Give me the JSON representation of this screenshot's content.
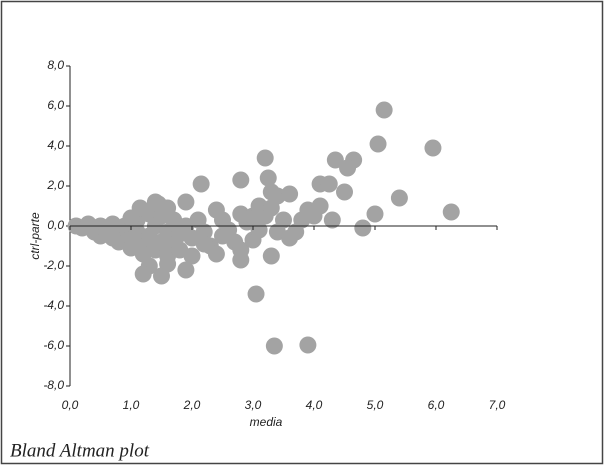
{
  "chart_data": {
    "type": "scatter",
    "caption": "Bland Altman plot",
    "x_label": "media",
    "y_label": "ctrl-parte",
    "color": "#a3a3a3",
    "xlim": [
      0,
      7
    ],
    "ylim": [
      -8,
      8
    ],
    "xticks": [
      {
        "value": 0,
        "label": "0,0"
      },
      {
        "value": 1,
        "label": "1,0"
      },
      {
        "value": 2,
        "label": "2,0"
      },
      {
        "value": 3,
        "label": "3,0"
      },
      {
        "value": 4,
        "label": "4,0"
      },
      {
        "value": 5,
        "label": "5,0"
      },
      {
        "value": 6,
        "label": "6,0"
      },
      {
        "value": 7,
        "label": "7,0"
      }
    ],
    "yticks": [
      {
        "value": -8,
        "label": "-8,0"
      },
      {
        "value": -6,
        "label": "-6,0"
      },
      {
        "value": -4,
        "label": "-4,0"
      },
      {
        "value": -2,
        "label": "-2,0"
      },
      {
        "value": 0,
        "label": "0,0"
      },
      {
        "value": 2,
        "label": "2,0"
      },
      {
        "value": 4,
        "label": "4,0"
      },
      {
        "value": 6,
        "label": "6,0"
      },
      {
        "value": 8,
        "label": "8,0"
      }
    ],
    "x": [
      0.1,
      0.2,
      0.3,
      0.4,
      0.5,
      0.5,
      0.6,
      0.7,
      0.8,
      0.8,
      0.9,
      1.0,
      1.0,
      1.1,
      1.1,
      1.2,
      1.2,
      1.3,
      1.3,
      1.4,
      1.4,
      1.4,
      1.5,
      1.5,
      1.6,
      1.6,
      1.6,
      1.7,
      1.7,
      1.8,
      1.8,
      1.9,
      1.9,
      2.0,
      2.1,
      2.2,
      2.3,
      2.4,
      2.4,
      2.5,
      2.5,
      2.6,
      2.7,
      2.8,
      2.8,
      2.9,
      3.0,
      3.0,
      3.1,
      3.1,
      3.2,
      3.3,
      3.4,
      3.5,
      3.6,
      3.7,
      3.8,
      3.9,
      4.0,
      4.1,
      4.3,
      1.0,
      0.7,
      1.3,
      2.0,
      2.2,
      1.15,
      1.45,
      5.15,
      5.05,
      5.95,
      3.2,
      4.35,
      4.65,
      4.55,
      2.8,
      3.25,
      2.15,
      4.1,
      4.25,
      3.3,
      3.4,
      3.6,
      4.5,
      5.4,
      6.25,
      5.0,
      4.8,
      3.05,
      3.35,
      3.9,
      2.8,
      3.3,
      1.2,
      1.5,
      1.9,
      1.6
    ],
    "y": [
      0.0,
      -0.1,
      0.1,
      -0.3,
      -0.5,
      0.0,
      -0.2,
      0.1,
      -0.4,
      -0.8,
      0.0,
      -0.6,
      -1.1,
      -0.3,
      0.3,
      -0.9,
      -1.4,
      0.6,
      -0.5,
      1.2,
      0.0,
      -1.2,
      -0.8,
      0.5,
      -0.3,
      0.9,
      -1.5,
      -0.9,
      0.3,
      -0.4,
      -1.2,
      1.2,
      0.0,
      -0.6,
      0.3,
      -0.3,
      -1.0,
      0.8,
      -1.4,
      0.3,
      -0.5,
      -0.2,
      -0.8,
      -1.2,
      0.6,
      0.2,
      -0.7,
      0.5,
      1.0,
      -0.2,
      0.5,
      0.9,
      -0.3,
      0.3,
      -0.6,
      -0.3,
      0.3,
      0.8,
      0.5,
      1.0,
      0.3,
      0.4,
      -0.6,
      -2.0,
      -1.5,
      -0.9,
      0.9,
      1.1,
      5.8,
      4.1,
      3.9,
      3.4,
      3.3,
      3.3,
      2.9,
      2.3,
      2.4,
      2.1,
      2.1,
      2.1,
      1.7,
      1.5,
      1.6,
      1.7,
      1.4,
      0.7,
      0.6,
      -0.1,
      -3.4,
      -6.0,
      -5.95,
      -1.7,
      -1.5,
      -2.4,
      -2.5,
      -2.2,
      -1.9
    ]
  }
}
